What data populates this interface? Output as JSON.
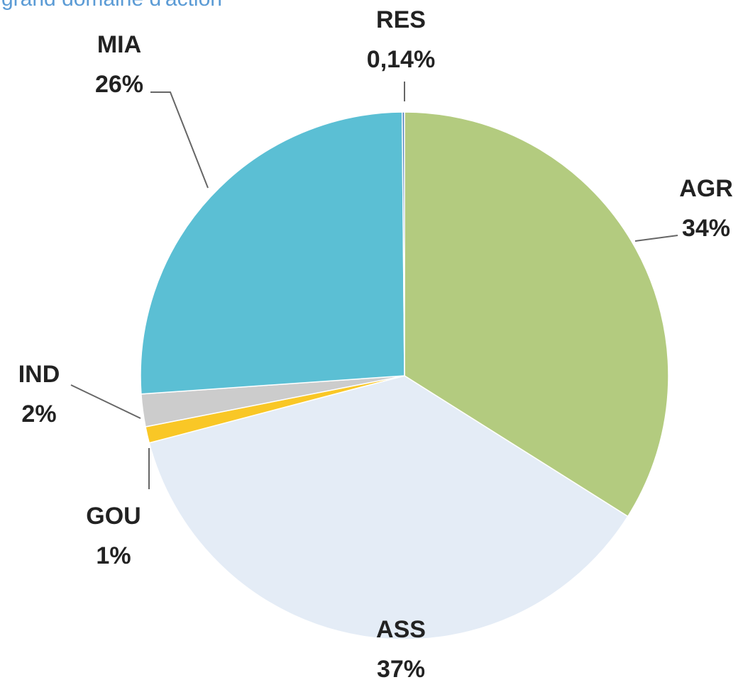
{
  "chart_data": {
    "type": "pie",
    "title": "grand domaine d'action",
    "categories": [
      "AGR",
      "ASS",
      "GOU",
      "IND",
      "MIA",
      "RES"
    ],
    "values": [
      34,
      37,
      1,
      2,
      26,
      0.14
    ],
    "value_labels": [
      "34%",
      "37%",
      "1%",
      "2%",
      "26%",
      "0,14%"
    ],
    "colors": [
      "#b3cb7f",
      "#e4ecf6",
      "#f9c726",
      "#cccccc",
      "#5bbfd4",
      "#4f81bd"
    ]
  }
}
